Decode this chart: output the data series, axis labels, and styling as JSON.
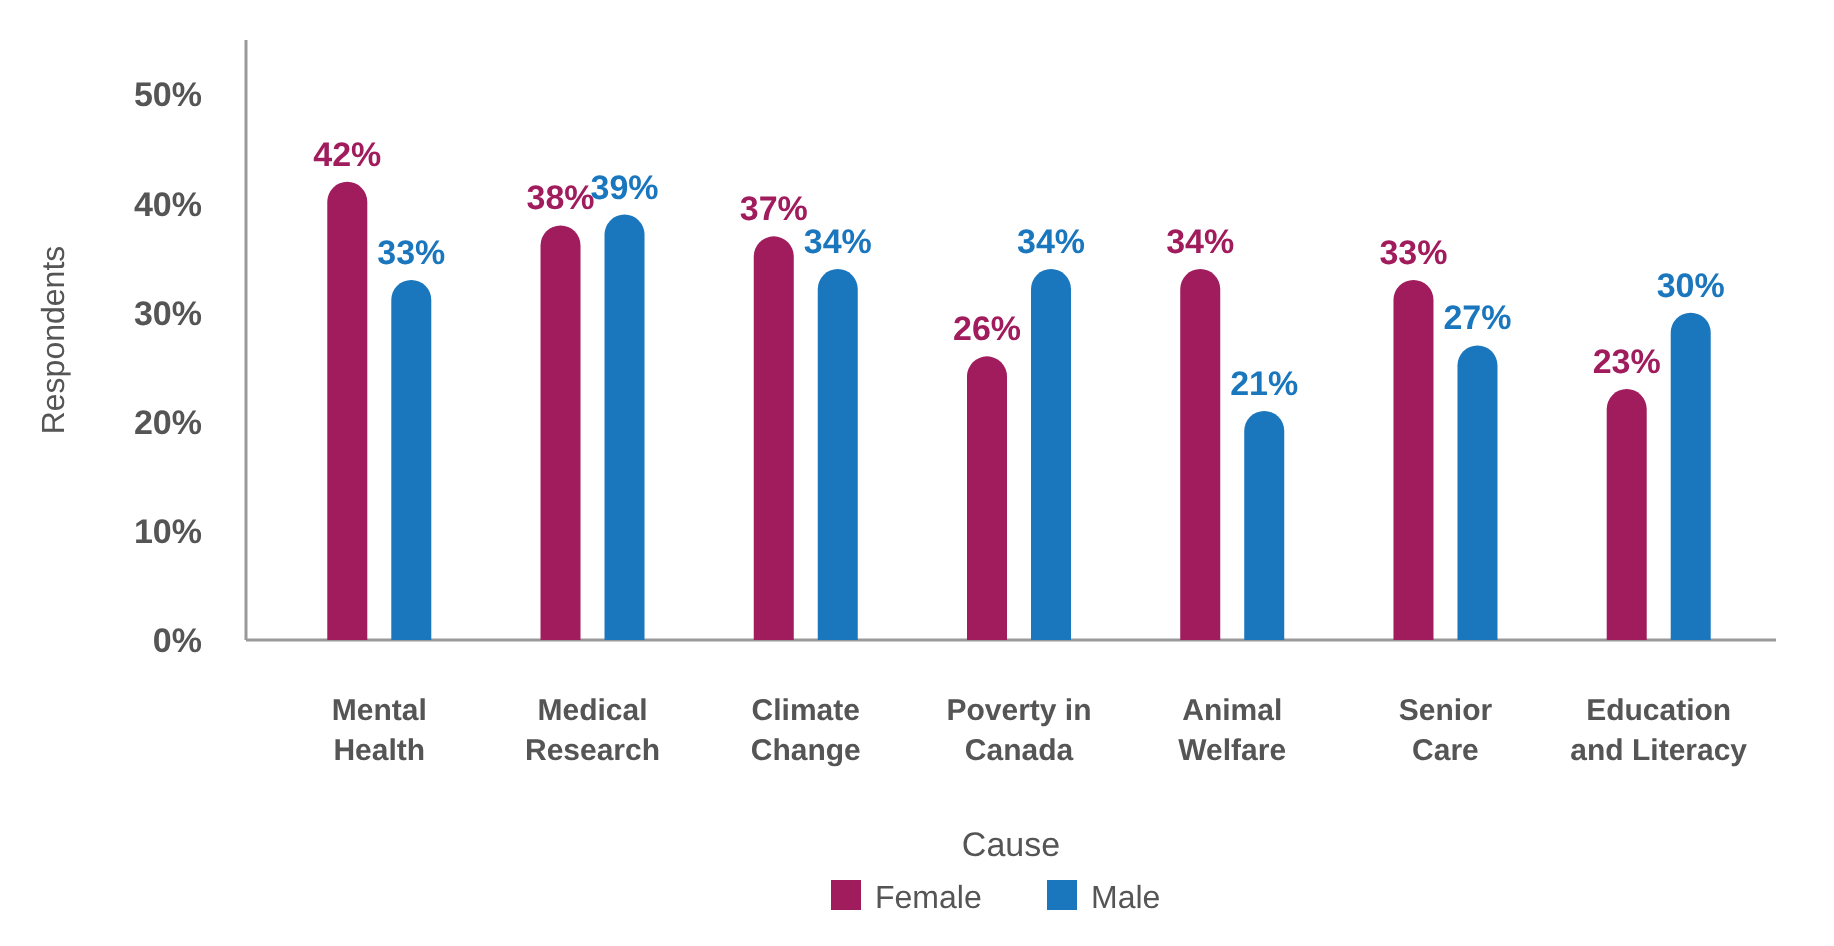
{
  "chart_data": {
    "type": "bar",
    "xlabel": "Cause",
    "ylabel": "Respondents",
    "categories": [
      "Mental Health",
      "Medical Research",
      "Climate Change",
      "Poverty in Canada",
      "Animal Welfare",
      "Senior Care",
      "Education and Literacy"
    ],
    "series": [
      {
        "name": "Female",
        "color": "#a01c5d",
        "values": [
          42,
          38,
          37,
          26,
          34,
          33,
          23
        ],
        "value_labels": [
          "42%",
          "38%",
          "37%",
          "26%",
          "34%",
          "33%",
          "23%"
        ]
      },
      {
        "name": "Male",
        "color": "#1a76bd",
        "values": [
          33,
          39,
          34,
          34,
          21,
          27,
          30
        ],
        "value_labels": [
          "33%",
          "39%",
          "34%",
          "34%",
          "21%",
          "27%",
          "30%"
        ]
      }
    ],
    "ylim": [
      0,
      55
    ],
    "yticks": [
      {
        "value": 0,
        "label": "0%"
      },
      {
        "value": 10,
        "label": "10%"
      },
      {
        "value": 20,
        "label": "20%"
      },
      {
        "value": 30,
        "label": "30%"
      },
      {
        "value": 40,
        "label": "40%"
      },
      {
        "value": 50,
        "label": "50%"
      }
    ],
    "grid": false,
    "legend": "bottom"
  }
}
